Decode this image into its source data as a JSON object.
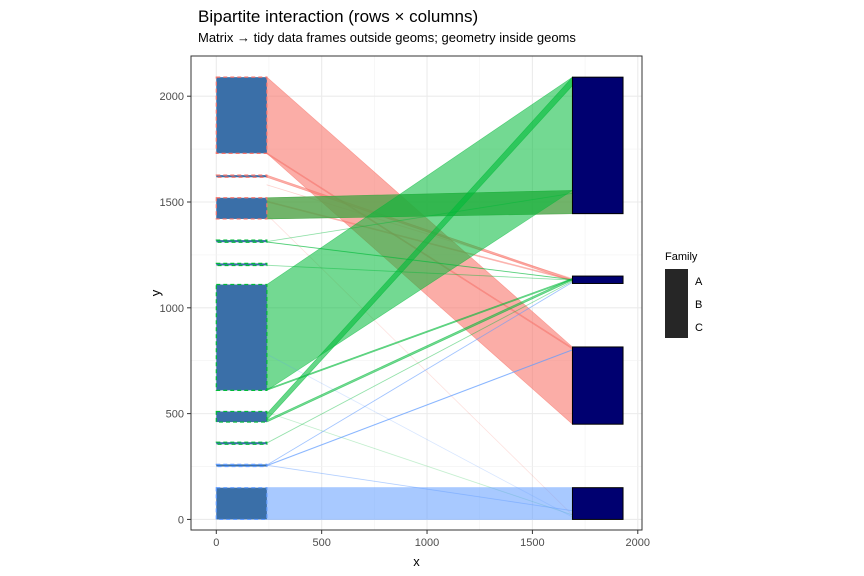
{
  "chart_data": {
    "type": "bipartite",
    "title": "Bipartite interaction (rows × columns)",
    "subtitle": "Matrix → tidy data frames outside geoms; geometry inside geoms",
    "xlabel": "x",
    "ylabel": "y",
    "xlim": [
      -120,
      2020
    ],
    "ylim": [
      -50,
      2190
    ],
    "x_ticks": [
      0,
      500,
      1000,
      1500,
      2000
    ],
    "y_ticks": [
      0,
      500,
      1000,
      1500,
      2000
    ],
    "grid": true,
    "legend": {
      "title": "Family",
      "labels": [
        "A",
        "B",
        "C"
      ],
      "position": "right"
    },
    "colors": {
      "A": "#f8766d",
      "B": "#00ba38",
      "C": "#619cff",
      "row_box": "#3a6fa8",
      "col_box": "#000070"
    },
    "row_x": [
      0,
      240
    ],
    "col_x": [
      1690,
      1930
    ],
    "rows": [
      {
        "y0": 1730,
        "y1": 2090,
        "family": "A"
      },
      {
        "y0": 1617,
        "y1": 1627,
        "family": "A"
      },
      {
        "y0": 1420,
        "y1": 1520,
        "family": "A"
      },
      {
        "y0": 1310,
        "y1": 1320,
        "family": "B"
      },
      {
        "y0": 1200,
        "y1": 1210,
        "family": "B"
      },
      {
        "y0": 610,
        "y1": 1110,
        "family": "B"
      },
      {
        "y0": 460,
        "y1": 510,
        "family": "B"
      },
      {
        "y0": 355,
        "y1": 365,
        "family": "B"
      },
      {
        "y0": 250,
        "y1": 260,
        "family": "C"
      },
      {
        "y0": 0,
        "y1": 150,
        "family": "C"
      }
    ],
    "cols": [
      {
        "y0": 1445,
        "y1": 2090
      },
      {
        "y0": 1115,
        "y1": 1150
      },
      {
        "y0": 450,
        "y1": 815
      },
      {
        "y0": 0,
        "y1": 150
      }
    ],
    "links": [
      {
        "ry": [
          1730,
          2090
        ],
        "cy": [
          450,
          815
        ],
        "family": "A",
        "opacity": 0.6
      },
      {
        "ry": [
          1420,
          1520
        ],
        "cy": [
          1445,
          1555
        ],
        "family": "A",
        "opacity": 0.6
      },
      {
        "ry": [
          1617,
          1627
        ],
        "cy": [
          1125,
          1135
        ],
        "family": "A",
        "opacity": 0.6
      },
      {
        "ry": [
          1727,
          1733
        ],
        "cy": [
          805,
          811
        ],
        "family": "A",
        "opacity": 0.5
      },
      {
        "ry": [
          1500,
          1505
        ],
        "cy": [
          1128,
          1133
        ],
        "family": "A",
        "opacity": 0.45
      },
      {
        "ry": [
          1580,
          1582
        ],
        "cy": [
          1138,
          1140
        ],
        "family": "A",
        "opacity": 0.2
      },
      {
        "ry": [
          1440,
          1442
        ],
        "cy": [
          20,
          22
        ],
        "family": "A",
        "opacity": 0.15
      },
      {
        "ry": [
          610,
          1110
        ],
        "cy": [
          1555,
          2090
        ],
        "family": "B",
        "opacity": 0.55
      },
      {
        "ry": [
          1420,
          1520
        ],
        "cy": [
          1445,
          1555
        ],
        "family": "B",
        "opacity": 0.55
      },
      {
        "ry": [
          470,
          500
        ],
        "cy": [
          2050,
          2090
        ],
        "family": "B",
        "opacity": 0.6
      },
      {
        "ry": [
          460,
          470
        ],
        "cy": [
          1130,
          1140
        ],
        "family": "B",
        "opacity": 0.55
      },
      {
        "ry": [
          610,
          616
        ],
        "cy": [
          1133,
          1139
        ],
        "family": "B",
        "opacity": 0.55
      },
      {
        "ry": [
          1310,
          1312
        ],
        "cy": [
          1132,
          1134
        ],
        "family": "B",
        "opacity": 0.5
      },
      {
        "ry": [
          1312,
          1314
        ],
        "cy": [
          1540,
          1542
        ],
        "family": "B",
        "opacity": 0.3
      },
      {
        "ry": [
          1200,
          1202
        ],
        "cy": [
          1130,
          1132
        ],
        "family": "B",
        "opacity": 0.3
      },
      {
        "ry": [
          360,
          362
        ],
        "cy": [
          1125,
          1127
        ],
        "family": "B",
        "opacity": 0.3
      },
      {
        "ry": [
          505,
          507
        ],
        "cy": [
          20,
          22
        ],
        "family": "B",
        "opacity": 0.15
      },
      {
        "ry": [
          0,
          150
        ],
        "cy": [
          0,
          150
        ],
        "family": "C",
        "opacity": 0.55
      },
      {
        "ry": [
          253,
          256
        ],
        "cy": [
          800,
          803
        ],
        "family": "C",
        "opacity": 0.55
      },
      {
        "ry": [
          256,
          258
        ],
        "cy": [
          1120,
          1122
        ],
        "family": "C",
        "opacity": 0.45
      },
      {
        "ry": [
          255,
          257
        ],
        "cy": [
          40,
          42
        ],
        "family": "C",
        "opacity": 0.3
      },
      {
        "ry": [
          780,
          782
        ],
        "cy": [
          10,
          12
        ],
        "family": "C",
        "opacity": 0.15
      }
    ]
  }
}
